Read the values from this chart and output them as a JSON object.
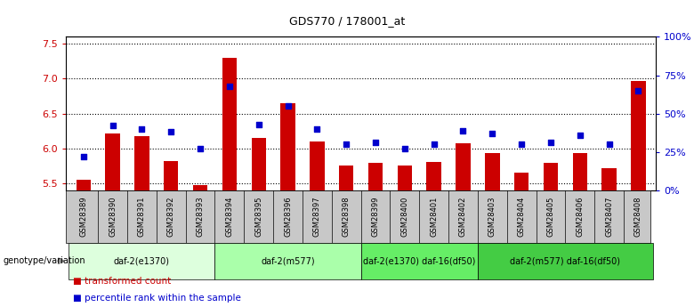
{
  "title": "GDS770 / 178001_at",
  "samples": [
    "GSM28389",
    "GSM28390",
    "GSM28391",
    "GSM28392",
    "GSM28393",
    "GSM28394",
    "GSM28395",
    "GSM28396",
    "GSM28397",
    "GSM28398",
    "GSM28399",
    "GSM28400",
    "GSM28401",
    "GSM28402",
    "GSM28403",
    "GSM28404",
    "GSM28405",
    "GSM28406",
    "GSM28407",
    "GSM28408"
  ],
  "transformed_count": [
    5.55,
    6.22,
    6.18,
    5.82,
    5.48,
    7.3,
    6.15,
    6.65,
    6.1,
    5.76,
    5.79,
    5.76,
    5.81,
    6.07,
    5.93,
    5.66,
    5.8,
    5.94,
    5.72,
    6.97
  ],
  "percentile_rank": [
    22,
    42,
    40,
    38,
    27,
    68,
    43,
    55,
    40,
    30,
    31,
    27,
    30,
    39,
    37,
    30,
    31,
    36,
    30,
    65
  ],
  "groups": [
    {
      "label": "daf-2(e1370)",
      "start": 0,
      "end": 4,
      "color": "#ddffdd"
    },
    {
      "label": "daf-2(m577)",
      "start": 5,
      "end": 9,
      "color": "#aaffaa"
    },
    {
      "label": "daf-2(e1370) daf-16(df50)",
      "start": 10,
      "end": 13,
      "color": "#66ee66"
    },
    {
      "label": "daf-2(m577) daf-16(df50)",
      "start": 14,
      "end": 19,
      "color": "#44cc44"
    }
  ],
  "ylim_left": [
    5.4,
    7.6
  ],
  "ylim_right": [
    0,
    100
  ],
  "yticks_left": [
    5.5,
    6.0,
    6.5,
    7.0,
    7.5
  ],
  "yticks_right": [
    0,
    25,
    50,
    75,
    100
  ],
  "bar_color": "#cc0000",
  "dot_color": "#0000cc",
  "bar_width": 0.5,
  "sample_bg_color": "#c8c8c8",
  "genotype_label": "genotype/variation",
  "legend_bar_label": "transformed count",
  "legend_dot_label": "percentile rank within the sample",
  "left_axis_color": "#cc0000",
  "right_axis_color": "#0000cc"
}
